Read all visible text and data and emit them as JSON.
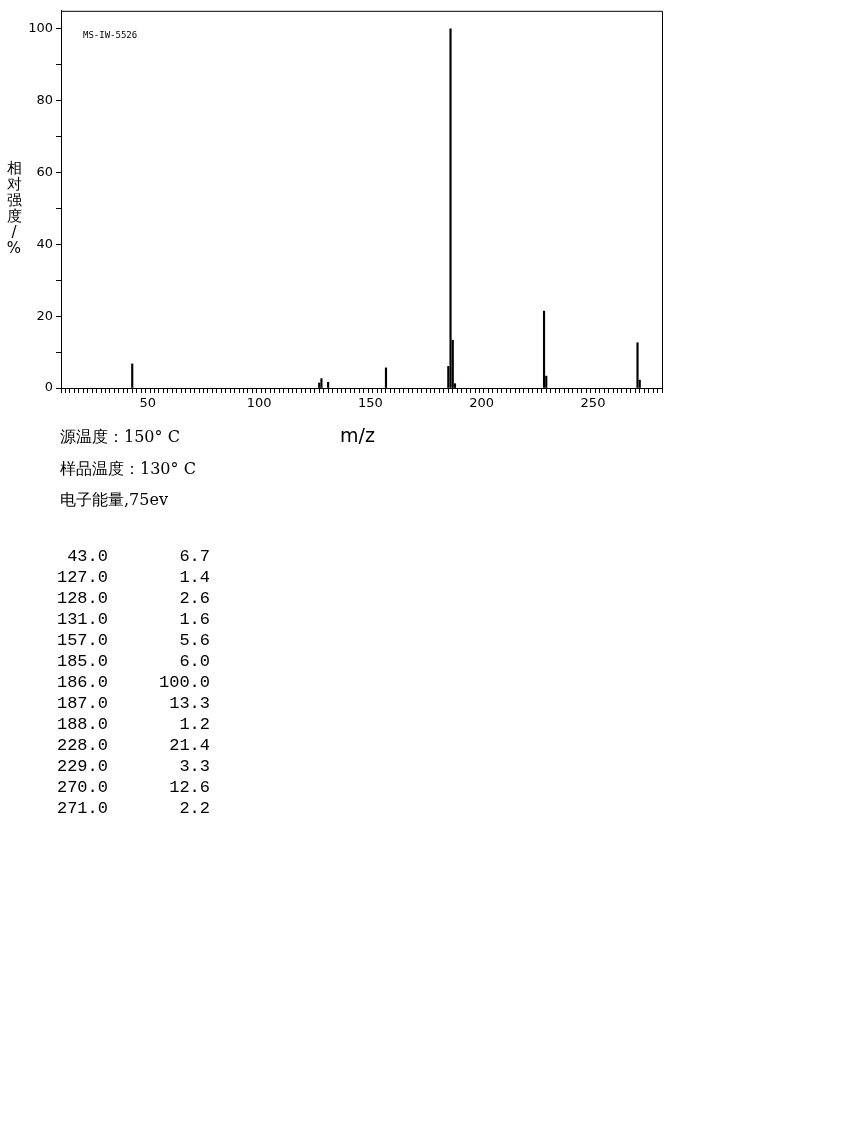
{
  "chart_data": {
    "type": "bar",
    "xlabel": "m/z",
    "ylabel": "相对强度/%",
    "x": [
      43,
      127,
      128,
      131,
      157,
      185,
      186,
      187,
      188,
      228,
      229,
      270,
      271
    ],
    "values": [
      6.7,
      1.4,
      2.6,
      1.6,
      5.6,
      6.0,
      100.0,
      13.3,
      1.2,
      21.4,
      3.3,
      12.6,
      2.2
    ],
    "color": "#000000",
    "xlim": [
      11,
      281
    ],
    "xticks": [
      {
        "value": 12,
        "label": null
      },
      {
        "value": 14,
        "label": null
      },
      {
        "value": 16,
        "label": null
      },
      {
        "value": 18,
        "label": null
      },
      {
        "value": 20,
        "label": null
      },
      {
        "value": 22,
        "label": null
      },
      {
        "value": 24,
        "label": null
      },
      {
        "value": 26,
        "label": null
      },
      {
        "value": 28,
        "label": null
      },
      {
        "value": 30,
        "label": null
      },
      {
        "value": 32,
        "label": null
      },
      {
        "value": 34,
        "label": null
      },
      {
        "value": 36,
        "label": null
      },
      {
        "value": 38,
        "label": null
      },
      {
        "value": 40,
        "label": null
      },
      {
        "value": 42,
        "label": null
      },
      {
        "value": 44,
        "label": null
      },
      {
        "value": 46,
        "label": null
      },
      {
        "value": 48,
        "label": null
      },
      50,
      {
        "value": 52,
        "label": null
      },
      {
        "value": 54,
        "label": null
      },
      {
        "value": 56,
        "label": null
      },
      {
        "value": 58,
        "label": null
      },
      {
        "value": 60,
        "label": null
      },
      {
        "value": 62,
        "label": null
      },
      {
        "value": 64,
        "label": null
      },
      {
        "value": 66,
        "label": null
      },
      {
        "value": 68,
        "label": null
      },
      {
        "value": 70,
        "label": null
      },
      {
        "value": 72,
        "label": null
      },
      {
        "value": 74,
        "label": null
      },
      {
        "value": 76,
        "label": null
      },
      {
        "value": 78,
        "label": null
      },
      {
        "value": 80,
        "label": null
      },
      {
        "value": 82,
        "label": null
      },
      {
        "value": 84,
        "label": null
      },
      {
        "value": 86,
        "label": null
      },
      {
        "value": 88,
        "label": null
      },
      {
        "value": 90,
        "label": null
      },
      {
        "value": 92,
        "label": null
      },
      {
        "value": 94,
        "label": null
      },
      {
        "value": 96,
        "label": null
      },
      {
        "value": 98,
        "label": null
      },
      100,
      {
        "value": 102,
        "label": null
      },
      {
        "value": 104,
        "label": null
      },
      {
        "value": 106,
        "label": null
      },
      {
        "value": 108,
        "label": null
      },
      {
        "value": 110,
        "label": null
      },
      {
        "value": 112,
        "label": null
      },
      {
        "value": 114,
        "label": null
      },
      {
        "value": 116,
        "label": null
      },
      {
        "value": 118,
        "label": null
      },
      {
        "value": 120,
        "label": null
      },
      {
        "value": 122,
        "label": null
      },
      {
        "value": 124,
        "label": null
      },
      {
        "value": 126,
        "label": null
      },
      {
        "value": 128,
        "label": null
      },
      {
        "value": 130,
        "label": null
      },
      {
        "value": 132,
        "label": null
      },
      {
        "value": 134,
        "label": null
      },
      {
        "value": 136,
        "label": null
      },
      {
        "value": 138,
        "label": null
      },
      {
        "value": 140,
        "label": null
      },
      {
        "value": 142,
        "label": null
      },
      {
        "value": 144,
        "label": null
      },
      {
        "value": 146,
        "label": null
      },
      {
        "value": 148,
        "label": null
      },
      150,
      {
        "value": 152,
        "label": null
      },
      {
        "value": 154,
        "label": null
      },
      {
        "value": 156,
        "label": null
      },
      {
        "value": 158,
        "label": null
      },
      {
        "value": 160,
        "label": null
      },
      {
        "value": 162,
        "label": null
      },
      {
        "value": 164,
        "label": null
      },
      {
        "value": 166,
        "label": null
      },
      {
        "value": 168,
        "label": null
      },
      {
        "value": 170,
        "label": null
      },
      {
        "value": 172,
        "label": null
      },
      {
        "value": 174,
        "label": null
      },
      {
        "value": 176,
        "label": null
      },
      {
        "value": 178,
        "label": null
      },
      {
        "value": 180,
        "label": null
      },
      {
        "value": 182,
        "label": null
      },
      {
        "value": 184,
        "label": null
      },
      {
        "value": 186,
        "label": null
      },
      {
        "value": 188,
        "label": null
      },
      {
        "value": 190,
        "label": null
      },
      {
        "value": 192,
        "label": null
      },
      {
        "value": 194,
        "label": null
      },
      {
        "value": 196,
        "label": null
      },
      {
        "value": 198,
        "label": null
      },
      200,
      {
        "value": 202,
        "label": null
      },
      {
        "value": 204,
        "label": null
      },
      {
        "value": 206,
        "label": null
      },
      {
        "value": 208,
        "label": null
      },
      {
        "value": 210,
        "label": null
      },
      {
        "value": 212,
        "label": null
      },
      {
        "value": 214,
        "label": null
      },
      {
        "value": 216,
        "label": null
      },
      {
        "value": 218,
        "label": null
      },
      {
        "value": 220,
        "label": null
      },
      {
        "value": 222,
        "label": null
      },
      {
        "value": 224,
        "label": null
      },
      {
        "value": 226,
        "label": null
      },
      {
        "value": 228,
        "label": null
      },
      {
        "value": 230,
        "label": null
      },
      {
        "value": 232,
        "label": null
      },
      {
        "value": 234,
        "label": null
      },
      {
        "value": 236,
        "label": null
      },
      {
        "value": 238,
        "label": null
      },
      {
        "value": 240,
        "label": null
      },
      {
        "value": 242,
        "label": null
      },
      {
        "value": 244,
        "label": null
      },
      {
        "value": 246,
        "label": null
      },
      {
        "value": 248,
        "label": null
      },
      250,
      {
        "value": 252,
        "label": null
      },
      {
        "value": 254,
        "label": null
      },
      {
        "value": 256,
        "label": null
      },
      {
        "value": 258,
        "label": null
      },
      {
        "value": 260,
        "label": null
      },
      {
        "value": 262,
        "label": null
      },
      {
        "value": 264,
        "label": null
      },
      {
        "value": 266,
        "label": null
      },
      {
        "value": 268,
        "label": null
      },
      {
        "value": 270,
        "label": null
      },
      {
        "value": 272,
        "label": null
      },
      {
        "value": 274,
        "label": null
      },
      {
        "value": 276,
        "label": null
      },
      {
        "value": 278,
        "label": null
      },
      {
        "value": 280,
        "label": null
      }
    ],
    "ylim": [
      0,
      105
    ],
    "yticks": [
      0,
      {
        "value": 10,
        "label": null
      },
      20,
      {
        "value": 30,
        "label": null
      },
      40,
      {
        "value": 50,
        "label": null
      },
      60,
      {
        "value": 70,
        "label": null
      },
      80,
      {
        "value": 90,
        "label": null
      },
      100
    ],
    "grid": false,
    "legend": false,
    "annotations": [
      "MS-IW-5526",
      "源温度：150° C",
      "样品温度：130° C",
      "电子能量,75ev",
      "43.0       6.7",
      "127.0       1.4",
      "128.0       2.6",
      "131.0       1.6",
      "157.0       5.6",
      "185.0       6.0",
      "186.0     100.0",
      "187.0      13.3",
      "188.0       1.2",
      "228.0      21.4",
      "229.0       3.3",
      "270.0      12.6",
      "271.0       2.2"
    ]
  }
}
